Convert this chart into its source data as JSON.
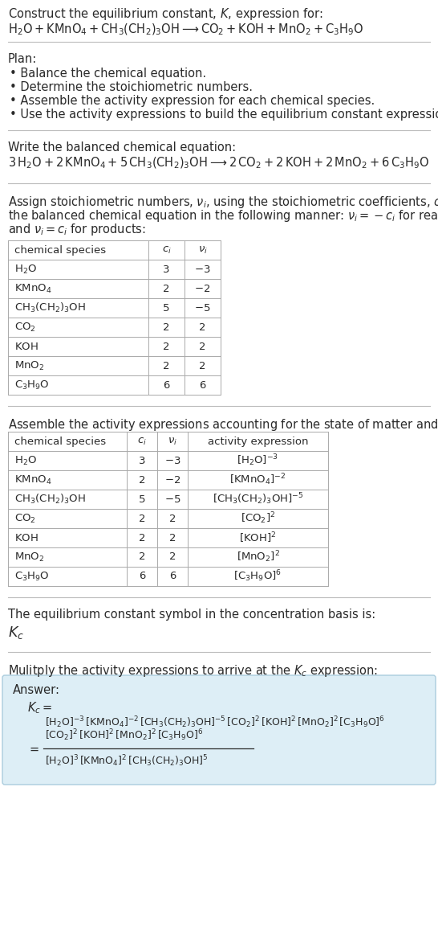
{
  "bg_color": "#ffffff",
  "text_color": "#2a2a2a",
  "title_line1": "Construct the equilibrium constant, $K$, expression for:",
  "title_line2": "$\\mathrm{H_2O + KMnO_4 + CH_3(CH_2)_3OH \\longrightarrow CO_2 + KOH + MnO_2 + C_3H_9O}$",
  "plan_header": "Plan:",
  "plan_items": [
    "Balance the chemical equation.",
    "Determine the stoichiometric numbers.",
    "Assemble the activity expression for each chemical species.",
    "Use the activity expressions to build the equilibrium constant expression."
  ],
  "balanced_header": "Write the balanced chemical equation:",
  "balanced_eq": "$\\mathrm{3\\,H_2O + 2\\,KMnO_4 + 5\\,CH_3(CH_2)_3OH \\longrightarrow 2\\,CO_2 + 2\\,KOH + 2\\,MnO_2 + 6\\,C_3H_9O}$",
  "stoich_header_parts": [
    "Assign stoichiometric numbers, $\\nu_i$, using the stoichiometric coefficients, $c_i$, from",
    "the balanced chemical equation in the following manner: $\\nu_i = -c_i$ for reactants",
    "and $\\nu_i = c_i$ for products:"
  ],
  "table1_headers": [
    "chemical species",
    "$c_i$",
    "$\\nu_i$"
  ],
  "table1_rows": [
    [
      "$\\mathrm{H_2O}$",
      "3",
      "$-3$"
    ],
    [
      "$\\mathrm{KMnO_4}$",
      "2",
      "$-2$"
    ],
    [
      "$\\mathrm{CH_3(CH_2)_3OH}$",
      "5",
      "$-5$"
    ],
    [
      "$\\mathrm{CO_2}$",
      "2",
      "2"
    ],
    [
      "$\\mathrm{KOH}$",
      "2",
      "2"
    ],
    [
      "$\\mathrm{MnO_2}$",
      "2",
      "2"
    ],
    [
      "$\\mathrm{C_3H_9O}$",
      "6",
      "6"
    ]
  ],
  "activity_header": "Assemble the activity expressions accounting for the state of matter and $\\nu_i$:",
  "table2_headers": [
    "chemical species",
    "$c_i$",
    "$\\nu_i$",
    "activity expression"
  ],
  "table2_rows": [
    [
      "$\\mathrm{H_2O}$",
      "3",
      "$-3$",
      "$[\\mathrm{H_2O}]^{-3}$"
    ],
    [
      "$\\mathrm{KMnO_4}$",
      "2",
      "$-2$",
      "$[\\mathrm{KMnO_4}]^{-2}$"
    ],
    [
      "$\\mathrm{CH_3(CH_2)_3OH}$",
      "5",
      "$-5$",
      "$[\\mathrm{CH_3(CH_2)_3OH}]^{-5}$"
    ],
    [
      "$\\mathrm{CO_2}$",
      "2",
      "2",
      "$[\\mathrm{CO_2}]^{2}$"
    ],
    [
      "$\\mathrm{KOH}$",
      "2",
      "2",
      "$[\\mathrm{KOH}]^{2}$"
    ],
    [
      "$\\mathrm{MnO_2}$",
      "2",
      "2",
      "$[\\mathrm{MnO_2}]^{2}$"
    ],
    [
      "$\\mathrm{C_3H_9O}$",
      "6",
      "6",
      "$[\\mathrm{C_3H_9O}]^{6}$"
    ]
  ],
  "kc_header": "The equilibrium constant symbol in the concentration basis is:",
  "kc_symbol": "$K_c$",
  "multiply_header": "Mulitply the activity expressions to arrive at the $K_c$ expression:",
  "answer_box_color": "#ddeef6",
  "answer_box_border": "#aaccdd",
  "answer_label": "Answer:",
  "answer_kc_eq": "$K_c = $",
  "answer_full": "$[\\mathrm{H_2O}]^{-3}\\,[\\mathrm{KMnO_4}]^{-2}\\,[\\mathrm{CH_3(CH_2)_3OH}]^{-5}\\,[\\mathrm{CO_2}]^{2}\\,[\\mathrm{KOH}]^{2}\\,[\\mathrm{MnO_2}]^{2}\\,[\\mathrm{C_3H_9O}]^{6}$",
  "answer_eq_sign": "$=$",
  "answer_num": "$[\\mathrm{CO_2}]^{2}\\,[\\mathrm{KOH}]^{2}\\,[\\mathrm{MnO_2}]^{2}\\,[\\mathrm{C_3H_9O}]^{6}$",
  "answer_den": "$[\\mathrm{H_2O}]^{3}\\,[\\mathrm{KMnO_4}]^{2}\\,[\\mathrm{CH_3(CH_2)_3OH}]^{5}$",
  "line_color": "#bbbbbb",
  "table_line_color": "#aaaaaa"
}
